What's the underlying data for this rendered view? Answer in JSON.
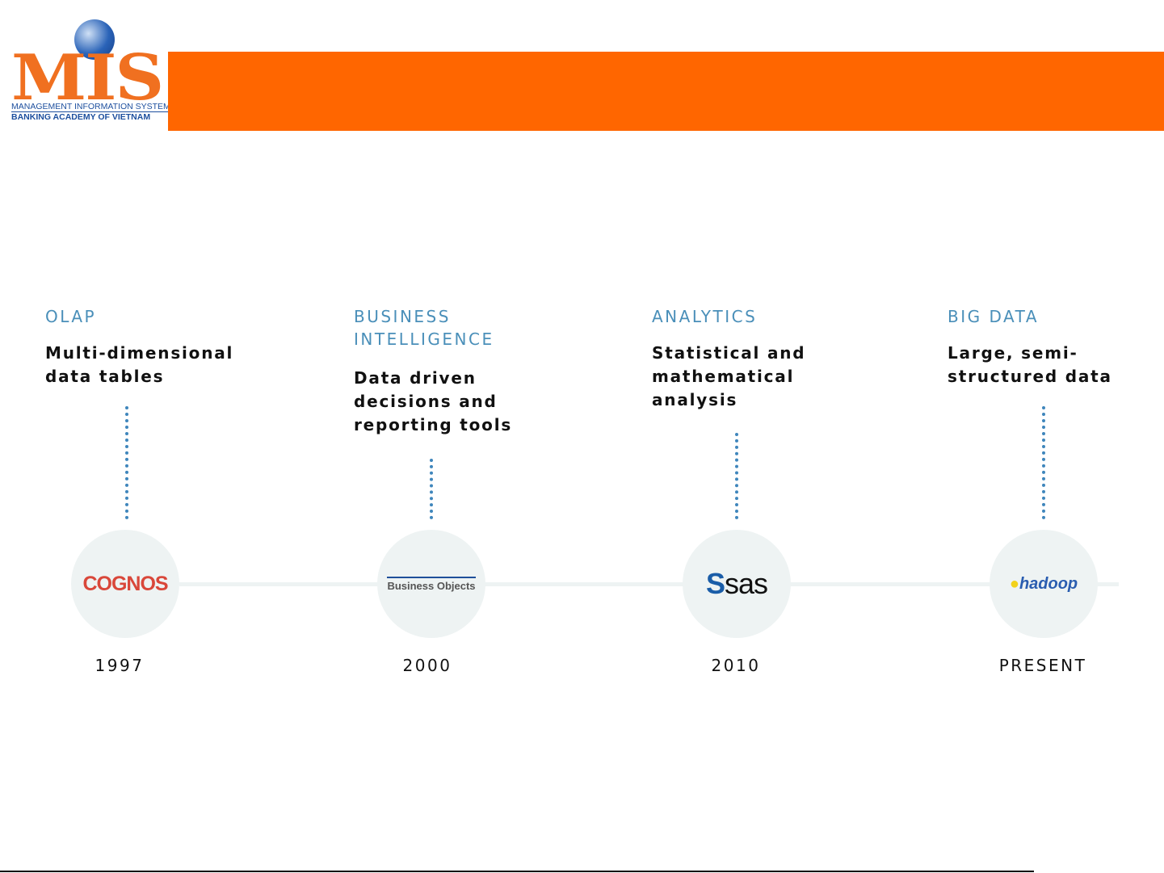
{
  "logo": {
    "mark": "MIS",
    "line1": "MANAGEMENT INFORMATION SYSTEMS",
    "line2": "BANKING ACADEMY OF VIETNAM"
  },
  "header": {
    "band_color": "#ff6600"
  },
  "timeline": [
    {
      "heading": "OLAP",
      "description": "Multi-dimensional data tables",
      "logo": "COGNOS",
      "year": "1997"
    },
    {
      "heading": "BUSINESS INTELLIGENCE",
      "description": "Data driven decisions and reporting tools",
      "logo": "Business Objects",
      "year": "2000"
    },
    {
      "heading": "ANALYTICS",
      "description": "Statistical and mathematical analysis",
      "logo": "sas",
      "year": "2010"
    },
    {
      "heading": "BIG DATA",
      "description": "Large, semi-structured data",
      "logo": "hadoop",
      "year": "PRESENT"
    }
  ]
}
